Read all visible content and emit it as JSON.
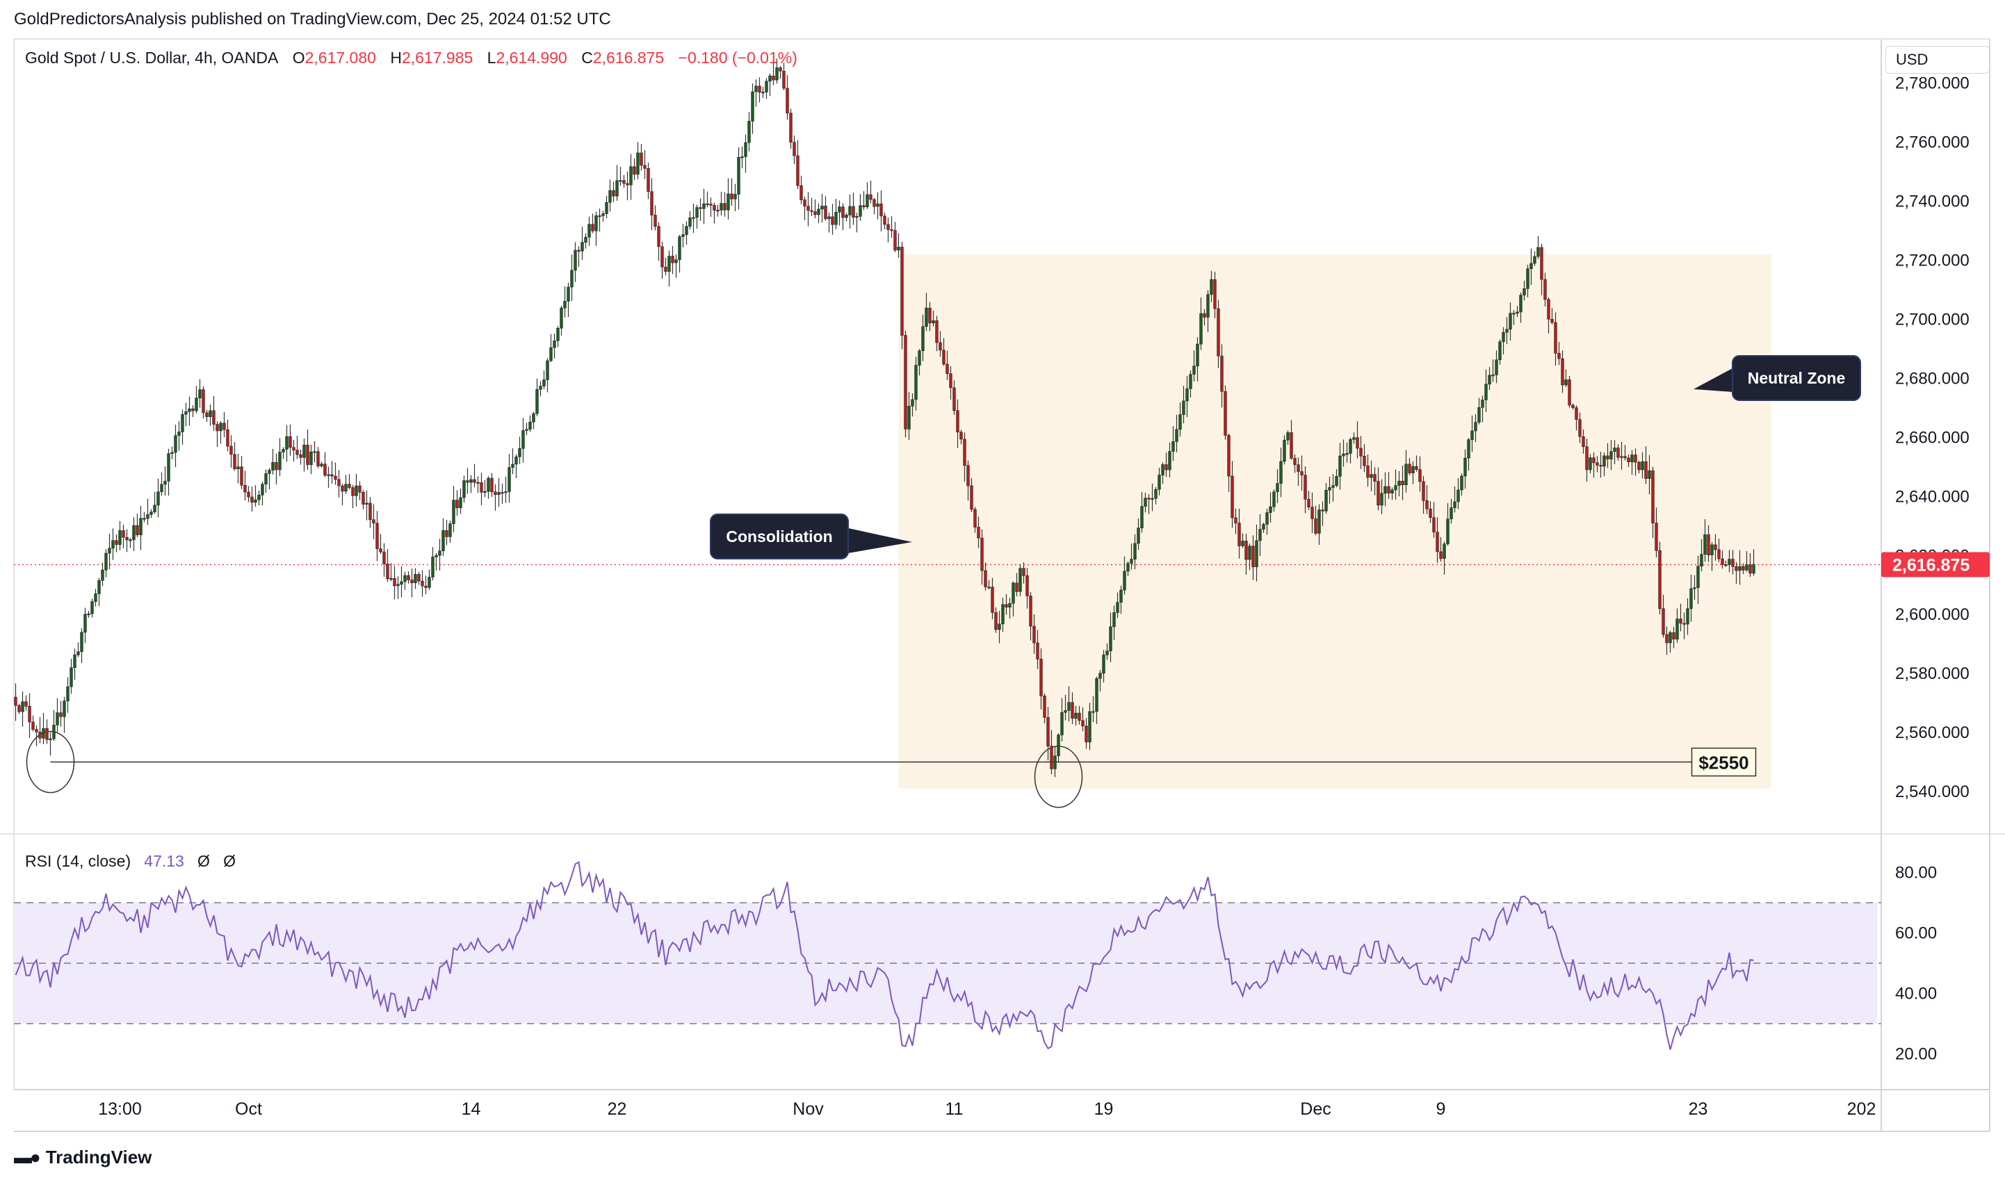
{
  "publisher_line": "GoldPredictorsAnalysis published on TradingView.com, Dec 25, 2024 01:52 UTC",
  "legend": {
    "symbol": "Gold Spot / U.S. Dollar, 4h, OANDA",
    "o_label": "O",
    "o_value": "2,617.080",
    "h_label": "H",
    "h_value": "2,617.985",
    "l_label": "L",
    "l_value": "2,614.990",
    "c_label": "C",
    "c_value": "2,616.875",
    "change": "−0.180 (−0.01%)"
  },
  "currency": "USD",
  "rsi_legend": {
    "name": "RSI (14, close)",
    "value": "47.13",
    "extra1": "Ø",
    "extra2": "Ø"
  },
  "footer": {
    "brand": "TradingView"
  },
  "annotations": {
    "consolidation": "Consolidation",
    "neutral_zone": "Neutral Zone",
    "support_label": "$2550"
  },
  "colors": {
    "up": "#26a69a",
    "up_body": "#1b5e20",
    "down": "#b71c1c",
    "zone": "#fdf3e4",
    "rsi_line": "#7e57c2",
    "rsi_band": "#efebfb",
    "price_badge": "#f23645"
  },
  "chart_data": {
    "type": "candlestick",
    "title": "Gold Spot / U.S. Dollar, 4h, OANDA",
    "last_price": 2616.875,
    "last_price_label": "2,616.875",
    "y_axis": {
      "range": [
        2528,
        2795
      ],
      "ticks": [
        2540,
        2560,
        2580,
        2600,
        2620,
        2640,
        2660,
        2680,
        2700,
        2720,
        2740,
        2760,
        2780
      ],
      "tick_labels": [
        "2,540.000",
        "2,560.000",
        "2,580.000",
        "2,600.000",
        "2,620.000",
        "2,640.000",
        "2,660.000",
        "2,680.000",
        "2,700.000",
        "2,720.000",
        "2,740.000",
        "2,760.000",
        "2,780.000"
      ]
    },
    "x_axis": {
      "labels": [
        {
          "text": "13:00",
          "bar": 30
        },
        {
          "text": "Oct",
          "bar": 67
        },
        {
          "text": "14",
          "bar": 131
        },
        {
          "text": "22",
          "bar": 173
        },
        {
          "text": "Nov",
          "bar": 228
        },
        {
          "text": "11",
          "bar": 270
        },
        {
          "text": "19",
          "bar": 313
        },
        {
          "text": "Dec",
          "bar": 374
        },
        {
          "text": "9",
          "bar": 410
        },
        {
          "text": "23",
          "bar": 484
        },
        {
          "text": "202",
          "bar": 531
        }
      ]
    },
    "price_path": [
      {
        "bar": 0,
        "price": 2572
      },
      {
        "bar": 10,
        "price": 2555
      },
      {
        "bar": 18,
        "price": 2590
      },
      {
        "bar": 28,
        "price": 2625
      },
      {
        "bar": 38,
        "price": 2632
      },
      {
        "bar": 48,
        "price": 2665
      },
      {
        "bar": 52,
        "price": 2675
      },
      {
        "bar": 60,
        "price": 2660
      },
      {
        "bar": 68,
        "price": 2635
      },
      {
        "bar": 78,
        "price": 2660
      },
      {
        "bar": 90,
        "price": 2648
      },
      {
        "bar": 100,
        "price": 2640
      },
      {
        "bar": 108,
        "price": 2611
      },
      {
        "bar": 118,
        "price": 2610
      },
      {
        "bar": 130,
        "price": 2648
      },
      {
        "bar": 140,
        "price": 2640
      },
      {
        "bar": 150,
        "price": 2673
      },
      {
        "bar": 160,
        "price": 2718
      },
      {
        "bar": 170,
        "price": 2740
      },
      {
        "bar": 180,
        "price": 2755
      },
      {
        "bar": 186,
        "price": 2715
      },
      {
        "bar": 196,
        "price": 2735
      },
      {
        "bar": 206,
        "price": 2740
      },
      {
        "bar": 212,
        "price": 2775
      },
      {
        "bar": 220,
        "price": 2786
      },
      {
        "bar": 226,
        "price": 2740
      },
      {
        "bar": 236,
        "price": 2735
      },
      {
        "bar": 246,
        "price": 2740
      },
      {
        "bar": 254,
        "price": 2725
      },
      {
        "bar": 256,
        "price": 2660
      },
      {
        "bar": 262,
        "price": 2705
      },
      {
        "bar": 270,
        "price": 2670
      },
      {
        "bar": 276,
        "price": 2630
      },
      {
        "bar": 282,
        "price": 2595
      },
      {
        "bar": 290,
        "price": 2615
      },
      {
        "bar": 298,
        "price": 2550
      },
      {
        "bar": 302,
        "price": 2570
      },
      {
        "bar": 308,
        "price": 2560
      },
      {
        "bar": 316,
        "price": 2600
      },
      {
        "bar": 324,
        "price": 2635
      },
      {
        "bar": 334,
        "price": 2660
      },
      {
        "bar": 344,
        "price": 2715
      },
      {
        "bar": 350,
        "price": 2630
      },
      {
        "bar": 356,
        "price": 2618
      },
      {
        "bar": 366,
        "price": 2660
      },
      {
        "bar": 374,
        "price": 2630
      },
      {
        "bar": 384,
        "price": 2660
      },
      {
        "bar": 392,
        "price": 2640
      },
      {
        "bar": 402,
        "price": 2650
      },
      {
        "bar": 410,
        "price": 2620
      },
      {
        "bar": 418,
        "price": 2660
      },
      {
        "bar": 430,
        "price": 2700
      },
      {
        "bar": 438,
        "price": 2722
      },
      {
        "bar": 444,
        "price": 2685
      },
      {
        "bar": 452,
        "price": 2650
      },
      {
        "bar": 462,
        "price": 2655
      },
      {
        "bar": 470,
        "price": 2648
      },
      {
        "bar": 474,
        "price": 2590
      },
      {
        "bar": 480,
        "price": 2600
      },
      {
        "bar": 486,
        "price": 2625
      },
      {
        "bar": 494,
        "price": 2614
      },
      {
        "bar": 500,
        "price": 2617
      }
    ],
    "neutral_zone": {
      "bar_start": 254,
      "bar_end": 505,
      "price_low": 2541,
      "price_high": 2722
    },
    "support": {
      "price": 2550,
      "bar_start": 10,
      "bar_end": 475
    },
    "circled_lows": [
      {
        "bar": 10,
        "price": 2550
      },
      {
        "bar": 300,
        "price": 2545
      }
    ],
    "rsi": {
      "range": [
        10,
        90
      ],
      "ticks": [
        20,
        40,
        60,
        80
      ],
      "tick_labels": [
        "20.00",
        "40.00",
        "60.00",
        "80.00"
      ],
      "upper": 70,
      "middle": 50,
      "lower": 30,
      "last": 47.13,
      "path": [
        {
          "bar": 0,
          "value": 50
        },
        {
          "bar": 10,
          "value": 45
        },
        {
          "bar": 18,
          "value": 62
        },
        {
          "bar": 26,
          "value": 70
        },
        {
          "bar": 36,
          "value": 64
        },
        {
          "bar": 48,
          "value": 72
        },
        {
          "bar": 56,
          "value": 66
        },
        {
          "bar": 64,
          "value": 48
        },
        {
          "bar": 76,
          "value": 60
        },
        {
          "bar": 90,
          "value": 50
        },
        {
          "bar": 100,
          "value": 44
        },
        {
          "bar": 110,
          "value": 35
        },
        {
          "bar": 118,
          "value": 38
        },
        {
          "bar": 130,
          "value": 58
        },
        {
          "bar": 140,
          "value": 54
        },
        {
          "bar": 150,
          "value": 70
        },
        {
          "bar": 162,
          "value": 80
        },
        {
          "bar": 172,
          "value": 72
        },
        {
          "bar": 180,
          "value": 62
        },
        {
          "bar": 188,
          "value": 52
        },
        {
          "bar": 200,
          "value": 62
        },
        {
          "bar": 212,
          "value": 66
        },
        {
          "bar": 222,
          "value": 74
        },
        {
          "bar": 230,
          "value": 40
        },
        {
          "bar": 240,
          "value": 44
        },
        {
          "bar": 250,
          "value": 46
        },
        {
          "bar": 256,
          "value": 20
        },
        {
          "bar": 264,
          "value": 45
        },
        {
          "bar": 272,
          "value": 38
        },
        {
          "bar": 282,
          "value": 28
        },
        {
          "bar": 290,
          "value": 33
        },
        {
          "bar": 298,
          "value": 24
        },
        {
          "bar": 306,
          "value": 40
        },
        {
          "bar": 316,
          "value": 58
        },
        {
          "bar": 326,
          "value": 66
        },
        {
          "bar": 336,
          "value": 72
        },
        {
          "bar": 344,
          "value": 76
        },
        {
          "bar": 350,
          "value": 42
        },
        {
          "bar": 360,
          "value": 45
        },
        {
          "bar": 370,
          "value": 56
        },
        {
          "bar": 380,
          "value": 48
        },
        {
          "bar": 390,
          "value": 54
        },
        {
          "bar": 402,
          "value": 50
        },
        {
          "bar": 410,
          "value": 42
        },
        {
          "bar": 420,
          "value": 58
        },
        {
          "bar": 432,
          "value": 68
        },
        {
          "bar": 438,
          "value": 72
        },
        {
          "bar": 446,
          "value": 50
        },
        {
          "bar": 454,
          "value": 40
        },
        {
          "bar": 464,
          "value": 44
        },
        {
          "bar": 472,
          "value": 40
        },
        {
          "bar": 476,
          "value": 22
        },
        {
          "bar": 484,
          "value": 36
        },
        {
          "bar": 492,
          "value": 50
        },
        {
          "bar": 500,
          "value": 47
        }
      ]
    }
  }
}
